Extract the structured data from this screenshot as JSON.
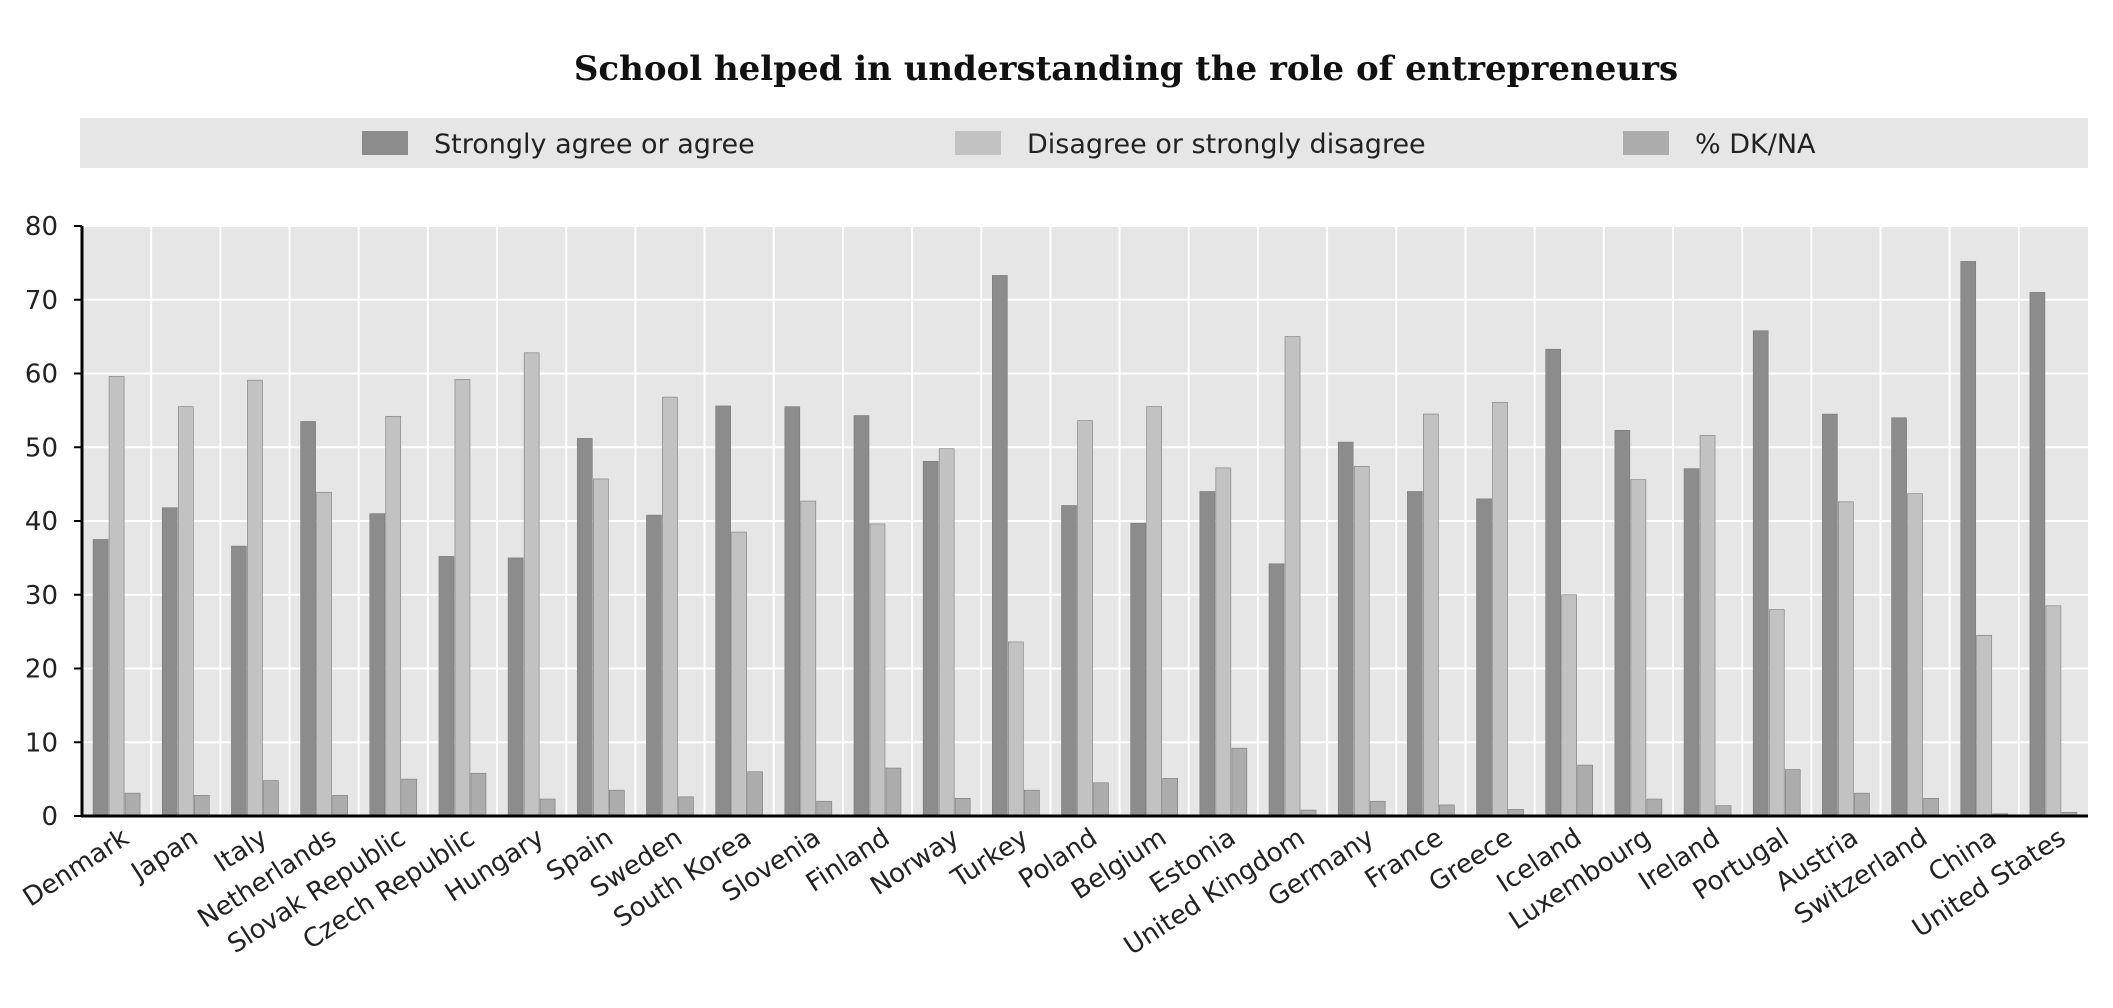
{
  "chart_data": {
    "type": "bar",
    "title": "School helped in understanding the role of entrepreneurs",
    "xlabel": "",
    "ylabel": "",
    "ylim": [
      0,
      80
    ],
    "yticks": [
      0,
      10,
      20,
      30,
      40,
      50,
      60,
      70,
      80
    ],
    "grid": true,
    "legend_position": "top",
    "categories": [
      "Denmark",
      "Japan",
      "Italy",
      "Netherlands",
      "Slovak Republic",
      "Czech Republic",
      "Hungary",
      "Spain",
      "Sweden",
      "South Korea",
      "Slovenia",
      "Finland",
      "Norway",
      "Turkey",
      "Poland",
      "Belgium",
      "Estonia",
      "United Kingdom",
      "Germany",
      "France",
      "Greece",
      "Iceland",
      "Luxembourg",
      "Ireland",
      "Portugal",
      "Austria",
      "Switzerland",
      "China",
      "United States"
    ],
    "series": [
      {
        "name": "Strongly agree or agree",
        "color": "#8c8c8c",
        "values": [
          37.5,
          41.8,
          36.6,
          53.5,
          41.0,
          35.2,
          35.0,
          51.2,
          40.8,
          55.6,
          55.5,
          54.3,
          48.1,
          73.3,
          42.1,
          39.7,
          44.0,
          34.2,
          50.7,
          44.0,
          43.0,
          63.3,
          52.3,
          47.1,
          65.8,
          54.5,
          54.0,
          75.2,
          71.0
        ]
      },
      {
        "name": "Disagree or strongly disagree",
        "color": "#c2c2c2",
        "values": [
          59.6,
          55.5,
          59.1,
          43.9,
          54.2,
          59.2,
          62.8,
          45.7,
          56.8,
          38.5,
          42.7,
          39.6,
          49.8,
          23.6,
          53.6,
          55.5,
          47.2,
          65.0,
          47.4,
          54.5,
          56.1,
          30.0,
          45.6,
          51.6,
          28.0,
          42.6,
          43.7,
          24.5,
          28.5
        ]
      },
      {
        "name": "% DK/NA",
        "color": "#acacac",
        "values": [
          3.1,
          2.8,
          4.8,
          2.8,
          5.0,
          5.8,
          2.3,
          3.5,
          2.6,
          6.0,
          2.0,
          6.5,
          2.4,
          3.5,
          4.5,
          5.1,
          9.2,
          0.8,
          2.0,
          1.5,
          0.9,
          6.9,
          2.3,
          1.4,
          6.3,
          3.1,
          2.4,
          0.3,
          0.5
        ]
      }
    ]
  },
  "colors": {
    "plot_background": "#e6e6e6",
    "legend_background": "#e6e6e6",
    "gridline": "#ffffff",
    "axis": "#000000"
  }
}
